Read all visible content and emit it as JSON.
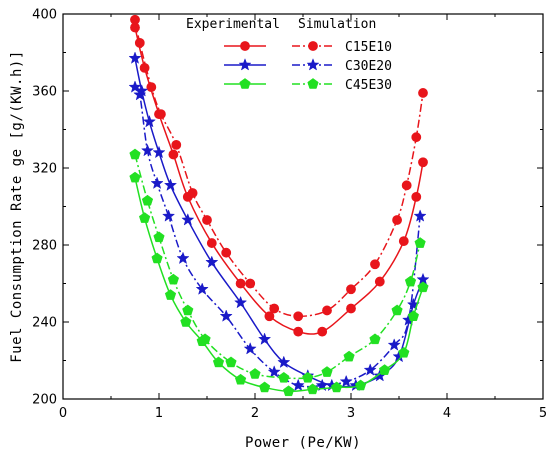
{
  "chart_data": {
    "type": "line",
    "xlabel": "Power (Pe/KW)",
    "ylabel": "Fuel Consumption Rate ge [g/(KW.h)]",
    "xlim": [
      0,
      5
    ],
    "ylim": [
      200,
      400
    ],
    "xticks": [
      0,
      1,
      2,
      3,
      4,
      5
    ],
    "yticks": [
      200,
      240,
      280,
      320,
      360,
      400
    ],
    "grid": false,
    "legend": {
      "placement": "top-center",
      "header_left": "Experimental",
      "header_right": "Simulation",
      "entries": [
        {
          "label": "C15E10",
          "color": "#e8151b",
          "marker": "circle"
        },
        {
          "label": "C30E20",
          "color": "#1a1ac8",
          "marker": "star"
        },
        {
          "label": "C45E30",
          "color": "#22e022",
          "marker": "pentagon"
        }
      ]
    },
    "series": [
      {
        "legend_label": "C15E10",
        "kind": "Experimental",
        "style": "solid",
        "marker": "circle",
        "color": "#e8151b",
        "x": [
          0.75,
          0.85,
          1.0,
          1.15,
          1.3,
          1.55,
          1.85,
          2.15,
          2.45,
          2.7,
          3.0,
          3.3,
          3.55,
          3.68,
          3.75
        ],
        "y": [
          393,
          372,
          348,
          327,
          305,
          281,
          260,
          243,
          235,
          235,
          247,
          261,
          282,
          305,
          323
        ]
      },
      {
        "legend_label": "C15E10",
        "kind": "Simulation",
        "style": "dashdot",
        "marker": "circle",
        "color": "#e8151b",
        "x": [
          0.75,
          0.8,
          0.92,
          1.02,
          1.18,
          1.35,
          1.5,
          1.7,
          1.95,
          2.2,
          2.45,
          2.75,
          3.0,
          3.25,
          3.48,
          3.58,
          3.68,
          3.75
        ],
        "y": [
          397,
          385,
          362,
          348,
          332,
          307,
          293,
          276,
          260,
          247,
          243,
          246,
          257,
          270,
          293,
          311,
          336,
          359
        ]
      },
      {
        "legend_label": "C30E20",
        "kind": "Experimental",
        "style": "solid",
        "marker": "star",
        "color": "#1a1ac8",
        "x": [
          0.75,
          0.82,
          0.9,
          1.0,
          1.12,
          1.3,
          1.55,
          1.85,
          2.1,
          2.3,
          2.55,
          2.8,
          3.05,
          3.3,
          3.5,
          3.65,
          3.75
        ],
        "y": [
          377,
          360,
          344,
          328,
          311,
          293,
          271,
          250,
          231,
          219,
          212,
          207,
          207,
          212,
          222,
          249,
          262
        ]
      },
      {
        "legend_label": "C30E20",
        "kind": "Simulation",
        "style": "dashdot",
        "marker": "star",
        "color": "#1a1ac8",
        "x": [
          0.75,
          0.8,
          0.88,
          0.98,
          1.1,
          1.25,
          1.45,
          1.7,
          1.95,
          2.2,
          2.45,
          2.7,
          2.95,
          3.2,
          3.45,
          3.6,
          3.72
        ],
        "y": [
          362,
          358,
          329,
          312,
          295,
          273,
          257,
          243,
          226,
          214,
          207,
          207,
          209,
          215,
          228,
          241,
          295
        ]
      },
      {
        "legend_label": "C45E30",
        "kind": "Experimental",
        "style": "solid",
        "marker": "pentagon",
        "color": "#22e022",
        "x": [
          0.75,
          0.85,
          0.98,
          1.12,
          1.28,
          1.45,
          1.62,
          1.85,
          2.1,
          2.35,
          2.6,
          2.85,
          3.1,
          3.35,
          3.55,
          3.65,
          3.75
        ],
        "y": [
          315,
          294,
          273,
          254,
          240,
          230,
          219,
          210,
          206,
          204,
          205,
          206,
          207,
          215,
          224,
          243,
          258
        ]
      },
      {
        "legend_label": "C45E30",
        "kind": "Simulation",
        "style": "dashdot",
        "marker": "pentagon",
        "color": "#22e022",
        "x": [
          0.75,
          0.88,
          1.0,
          1.15,
          1.3,
          1.48,
          1.75,
          2.0,
          2.3,
          2.55,
          2.75,
          2.98,
          3.25,
          3.48,
          3.62,
          3.72
        ],
        "y": [
          327,
          303,
          284,
          262,
          246,
          231,
          219,
          213,
          211,
          211,
          214,
          222,
          231,
          246,
          261,
          281
        ]
      }
    ]
  }
}
